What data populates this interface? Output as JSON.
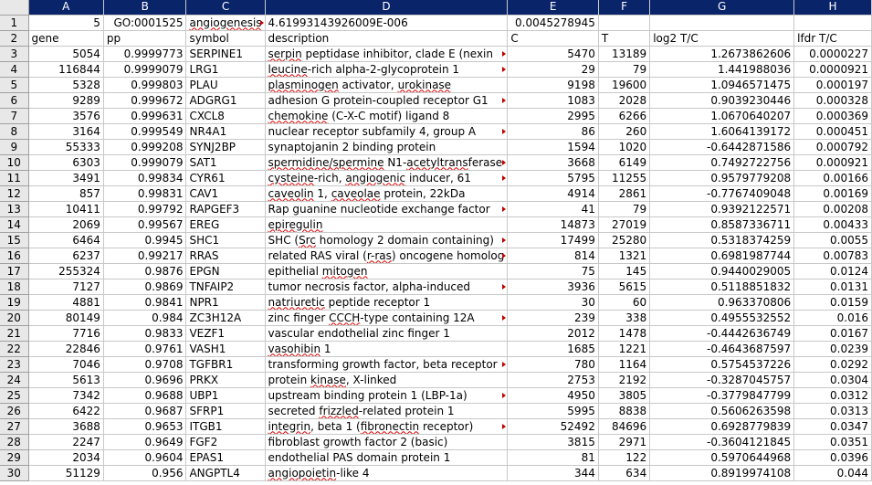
{
  "columns": [
    "A",
    "B",
    "C",
    "D",
    "E",
    "F",
    "G",
    "H"
  ],
  "rows": [
    {
      "n": "1",
      "A": "5",
      "B": "GO:0001525",
      "C": "angiogenesis",
      "D": "4.61993143926009E-006",
      "E": "0.0045278945",
      "F": "",
      "G": "",
      "H": ""
    },
    {
      "n": "2",
      "A": "gene",
      "B": "pp",
      "C": "symbol",
      "D": "description",
      "E": "C",
      "F": "T",
      "G": "log2 T/C",
      "H": "lfdr T/C"
    },
    {
      "n": "3",
      "A": "5054",
      "B": "0.9999773",
      "C": "SERPINE1",
      "D": "serpin peptidase inhibitor, clade E (nexin",
      "E": "5470",
      "F": "13189",
      "G": "1.2673862606",
      "H": "0.0000227"
    },
    {
      "n": "4",
      "A": "116844",
      "B": "0.9999079",
      "C": "LRG1",
      "D": "leucine-rich alpha-2-glycoprotein 1",
      "E": "29",
      "F": "79",
      "G": "1.441988036",
      "H": "0.0000921"
    },
    {
      "n": "5",
      "A": "5328",
      "B": "0.999803",
      "C": "PLAU",
      "D": "plasminogen activator, urokinase",
      "E": "9198",
      "F": "19600",
      "G": "1.0946571475",
      "H": "0.000197"
    },
    {
      "n": "6",
      "A": "9289",
      "B": "0.999672",
      "C": "ADGRG1",
      "D": "adhesion G protein-coupled receptor G1",
      "E": "1083",
      "F": "2028",
      "G": "0.9039230446",
      "H": "0.000328"
    },
    {
      "n": "7",
      "A": "3576",
      "B": "0.999631",
      "C": "CXCL8",
      "D": "chemokine (C-X-C motif) ligand 8",
      "E": "2995",
      "F": "6266",
      "G": "1.0670640207",
      "H": "0.000369"
    },
    {
      "n": "8",
      "A": "3164",
      "B": "0.999549",
      "C": "NR4A1",
      "D": "nuclear receptor subfamily 4, group A",
      "E": "86",
      "F": "260",
      "G": "1.6064139172",
      "H": "0.000451"
    },
    {
      "n": "9",
      "A": "55333",
      "B": "0.999208",
      "C": "SYNJ2BP",
      "D": "synaptojanin 2 binding protein",
      "E": "1594",
      "F": "1020",
      "G": "-0.6442871586",
      "H": "0.000792"
    },
    {
      "n": "10",
      "A": "6303",
      "B": "0.999079",
      "C": "SAT1",
      "D": "spermidine/spermine N1-acetyltransferase",
      "E": "3668",
      "F": "6149",
      "G": "0.7492722756",
      "H": "0.000921"
    },
    {
      "n": "11",
      "A": "3491",
      "B": "0.99834",
      "C": "CYR61",
      "D": "cysteine-rich, angiogenic inducer, 61",
      "E": "5795",
      "F": "11255",
      "G": "0.9579779208",
      "H": "0.00166"
    },
    {
      "n": "12",
      "A": "857",
      "B": "0.99831",
      "C": "CAV1",
      "D": "caveolin 1, caveolae protein, 22kDa",
      "E": "4914",
      "F": "2861",
      "G": "-0.7767409048",
      "H": "0.00169"
    },
    {
      "n": "13",
      "A": "10411",
      "B": "0.99792",
      "C": "RAPGEF3",
      "D": "Rap guanine nucleotide exchange factor",
      "E": "41",
      "F": "79",
      "G": "0.9392122571",
      "H": "0.00208"
    },
    {
      "n": "14",
      "A": "2069",
      "B": "0.99567",
      "C": "EREG",
      "D": "epiregulin",
      "E": "14873",
      "F": "27019",
      "G": "0.8587336711",
      "H": "0.00433"
    },
    {
      "n": "15",
      "A": "6464",
      "B": "0.9945",
      "C": "SHC1",
      "D": "SHC (Src homology 2 domain containing)",
      "E": "17499",
      "F": "25280",
      "G": "0.5318374259",
      "H": "0.0055"
    },
    {
      "n": "16",
      "A": "6237",
      "B": "0.99217",
      "C": "RRAS",
      "D": "related RAS viral (r-ras) oncogene homolog",
      "E": "814",
      "F": "1321",
      "G": "0.6981987744",
      "H": "0.00783"
    },
    {
      "n": "17",
      "A": "255324",
      "B": "0.9876",
      "C": "EPGN",
      "D": "epithelial mitogen",
      "E": "75",
      "F": "145",
      "G": "0.9440029005",
      "H": "0.0124"
    },
    {
      "n": "18",
      "A": "7127",
      "B": "0.9869",
      "C": "TNFAIP2",
      "D": "tumor necrosis factor, alpha-induced",
      "E": "3936",
      "F": "5615",
      "G": "0.5118851832",
      "H": "0.0131"
    },
    {
      "n": "19",
      "A": "4881",
      "B": "0.9841",
      "C": "NPR1",
      "D": "natriuretic peptide receptor 1",
      "E": "30",
      "F": "60",
      "G": "0.963370806",
      "H": "0.0159"
    },
    {
      "n": "20",
      "A": "80149",
      "B": "0.984",
      "C": "ZC3H12A",
      "D": "zinc finger CCCH-type containing 12A",
      "E": "239",
      "F": "338",
      "G": "0.4955532552",
      "H": "0.016"
    },
    {
      "n": "21",
      "A": "7716",
      "B": "0.9833",
      "C": "VEZF1",
      "D": "vascular endothelial zinc finger 1",
      "E": "2012",
      "F": "1478",
      "G": "-0.4442636749",
      "H": "0.0167"
    },
    {
      "n": "22",
      "A": "22846",
      "B": "0.9761",
      "C": "VASH1",
      "D": "vasohibin 1",
      "E": "1685",
      "F": "1221",
      "G": "-0.4643687597",
      "H": "0.0239"
    },
    {
      "n": "23",
      "A": "7046",
      "B": "0.9708",
      "C": "TGFBR1",
      "D": "transforming growth factor, beta receptor",
      "E": "780",
      "F": "1164",
      "G": "0.5754537226",
      "H": "0.0292"
    },
    {
      "n": "24",
      "A": "5613",
      "B": "0.9696",
      "C": "PRKX",
      "D": "protein kinase, X-linked",
      "E": "2753",
      "F": "2192",
      "G": "-0.3287045757",
      "H": "0.0304"
    },
    {
      "n": "25",
      "A": "7342",
      "B": "0.9688",
      "C": "UBP1",
      "D": "upstream binding protein 1 (LBP-1a)",
      "E": "4950",
      "F": "3805",
      "G": "-0.3779847799",
      "H": "0.0312"
    },
    {
      "n": "26",
      "A": "6422",
      "B": "0.9687",
      "C": "SFRP1",
      "D": "secreted frizzled-related protein 1",
      "E": "5995",
      "F": "8838",
      "G": "0.5606263598",
      "H": "0.0313"
    },
    {
      "n": "27",
      "A": "3688",
      "B": "0.9653",
      "C": "ITGB1",
      "D": "integrin, beta 1 (fibronectin receptor)",
      "E": "52492",
      "F": "84696",
      "G": "0.6928779839",
      "H": "0.0347"
    },
    {
      "n": "28",
      "A": "2247",
      "B": "0.9649",
      "C": "FGF2",
      "D": "fibroblast growth factor 2 (basic)",
      "E": "3815",
      "F": "2971",
      "G": "-0.3604121845",
      "H": "0.0351"
    },
    {
      "n": "29",
      "A": "2034",
      "B": "0.9604",
      "C": "EPAS1",
      "D": "endothelial PAS domain protein 1",
      "E": "81",
      "F": "122",
      "G": "0.5970644968",
      "H": "0.0396"
    },
    {
      "n": "30",
      "A": "51129",
      "B": "0.956",
      "C": "ANGPTL4",
      "D": "angiopoietin-like 4",
      "E": "344",
      "F": "634",
      "G": "0.8919974108",
      "H": "0.044"
    }
  ]
}
